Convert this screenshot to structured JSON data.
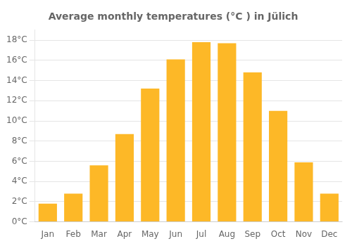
{
  "chart_data": {
    "type": "bar",
    "title": "Average monthly temperatures (°C ) in Jülich",
    "categories": [
      "Jan",
      "Feb",
      "Mar",
      "Apr",
      "May",
      "Jun",
      "Jul",
      "Aug",
      "Sep",
      "Oct",
      "Nov",
      "Dec"
    ],
    "values": [
      1.8,
      2.8,
      5.6,
      8.7,
      13.2,
      16.1,
      17.8,
      17.7,
      14.8,
      11.0,
      5.9,
      2.8
    ],
    "color": "#FDB827",
    "ylim": [
      0,
      19
    ],
    "yticks": [
      {
        "value": 0,
        "label": "0°C"
      },
      {
        "value": 2,
        "label": "2°C"
      },
      {
        "value": 4,
        "label": "4°C"
      },
      {
        "value": 6,
        "label": "6°C"
      },
      {
        "value": 8,
        "label": "8°C"
      },
      {
        "value": 10,
        "label": "10°C"
      },
      {
        "value": 12,
        "label": "12°C"
      },
      {
        "value": 14,
        "label": "14°C"
      },
      {
        "value": 16,
        "label": "16°C"
      },
      {
        "value": 18,
        "label": "18°C"
      }
    ],
    "grid": true
  }
}
